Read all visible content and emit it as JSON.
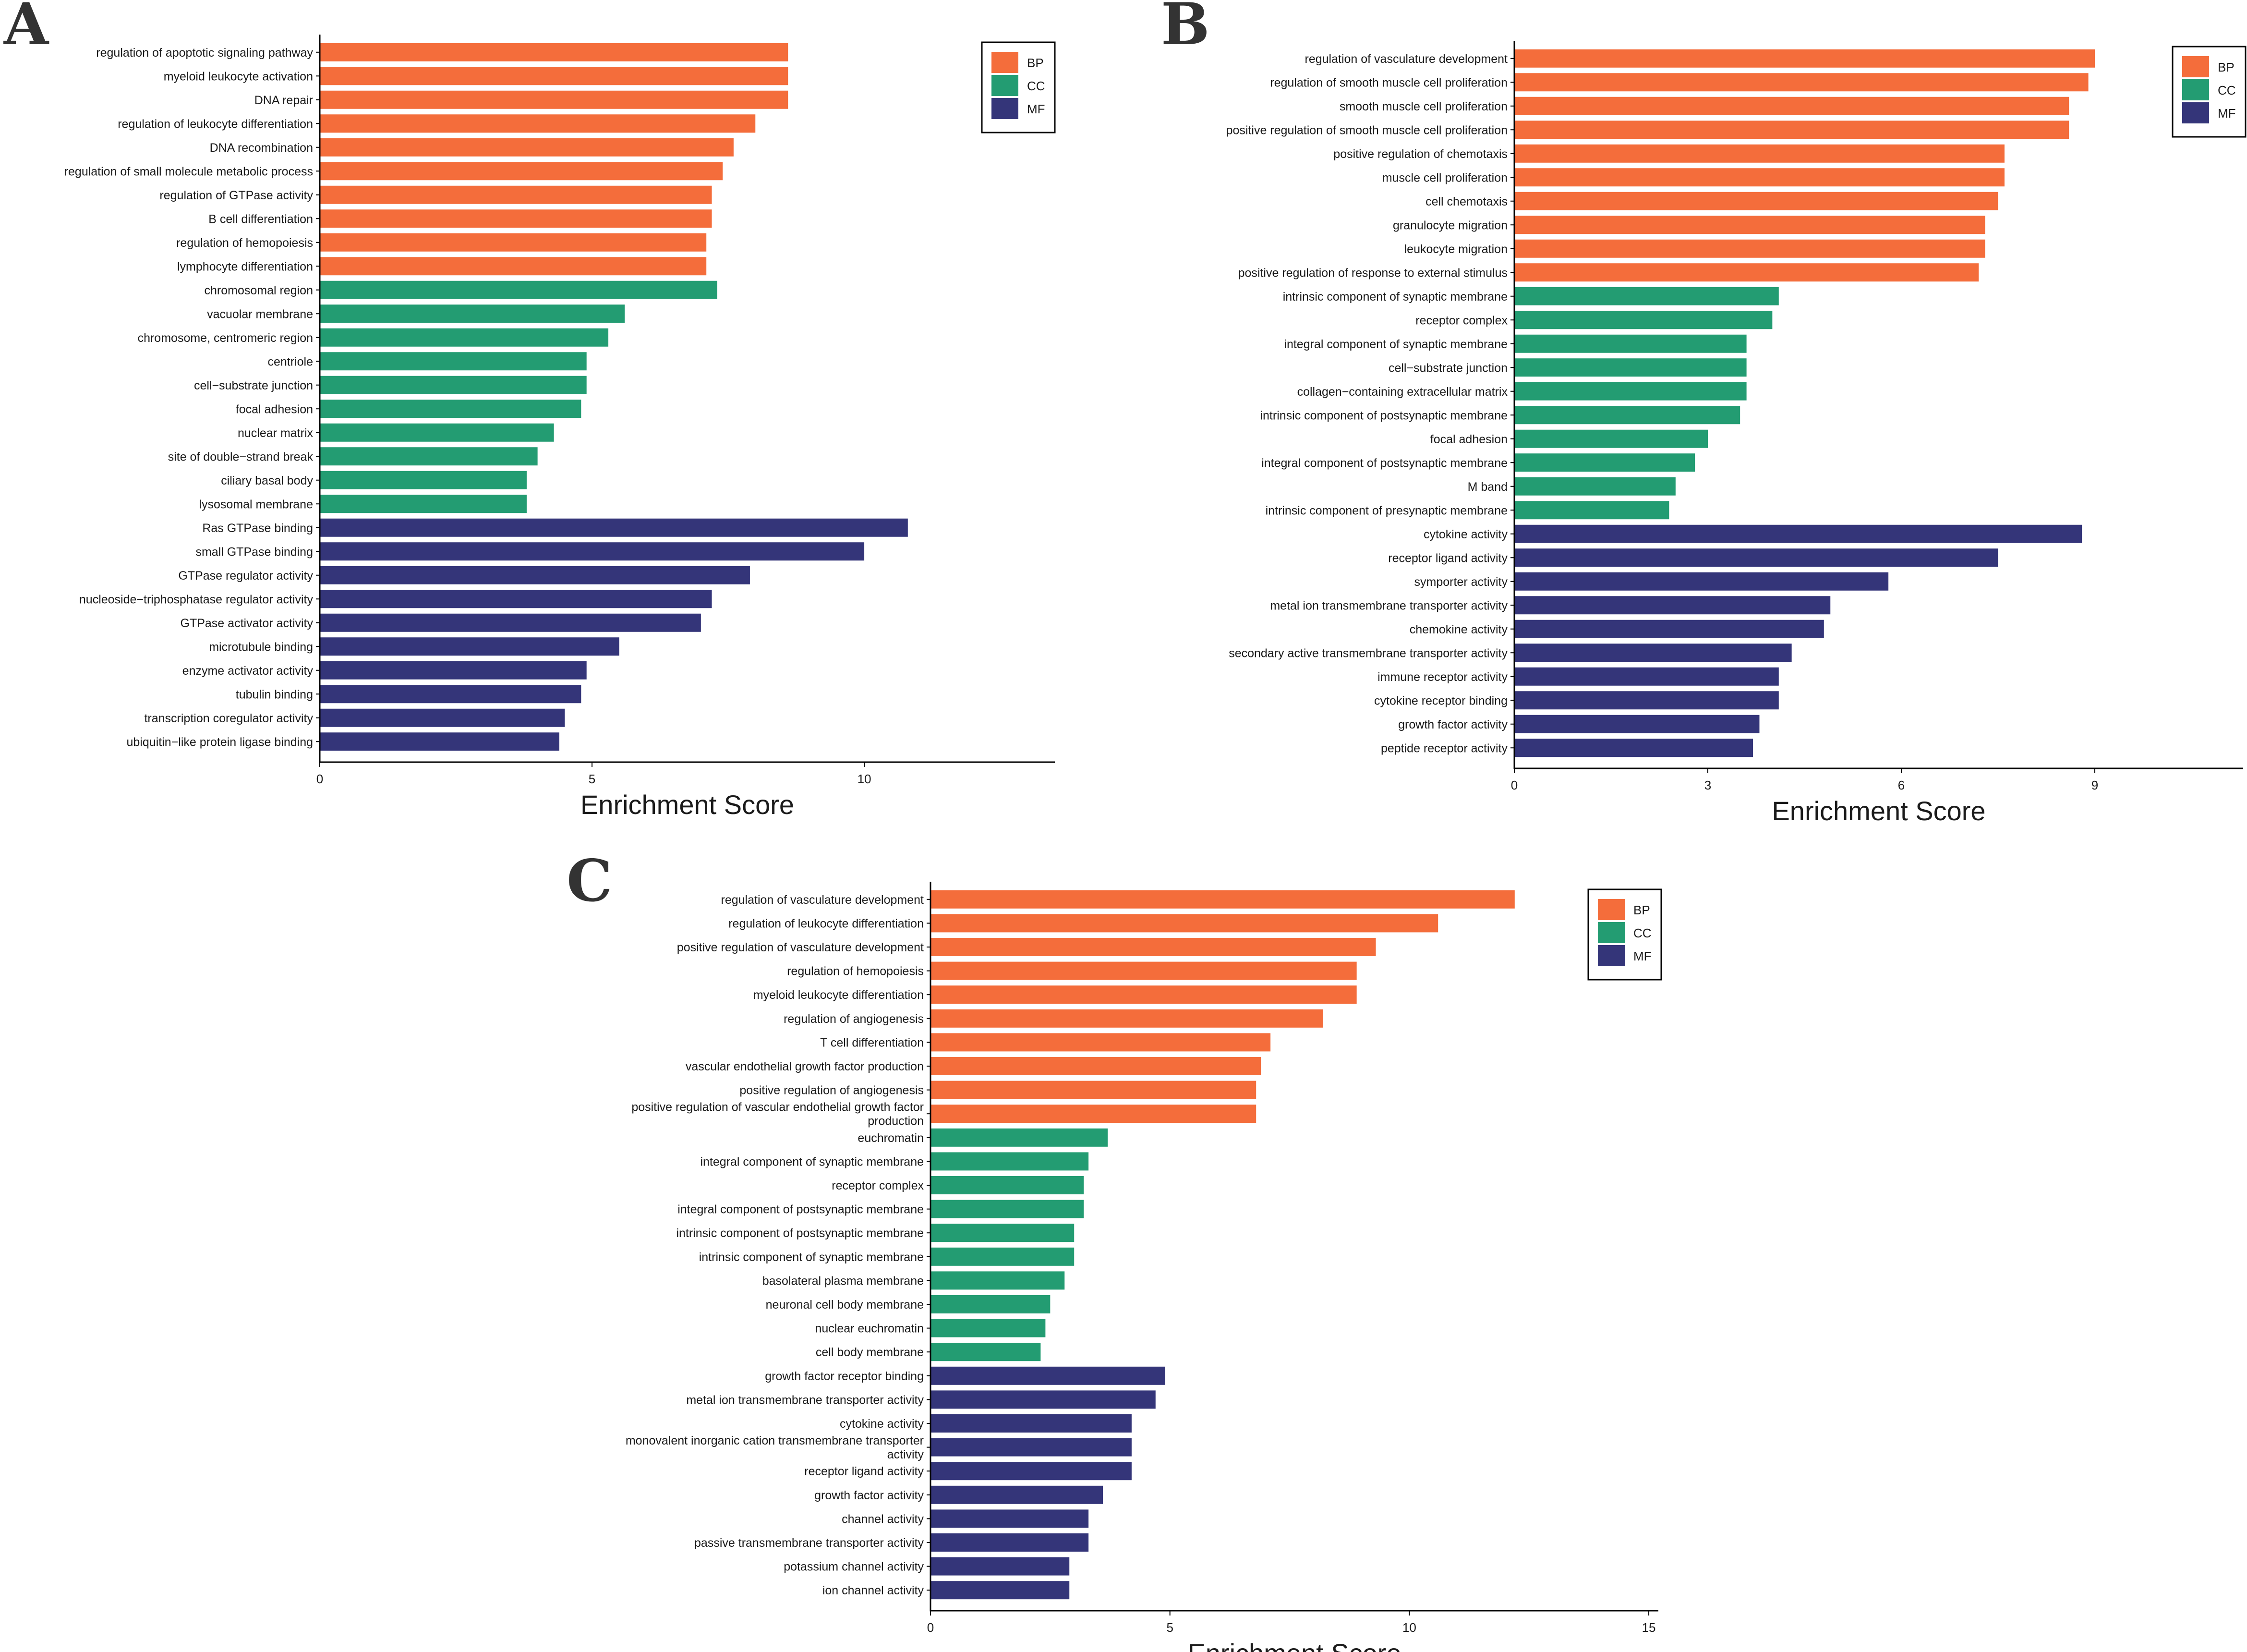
{
  "colors": {
    "BP": "#F46D3B",
    "CC": "#239C72",
    "MF": "#343579"
  },
  "chart_data": [
    {
      "panel": "A",
      "type": "bar",
      "orientation": "horizontal",
      "xlabel": "Enrichment Score",
      "xlim": [
        0,
        13.5
      ],
      "xticks": [
        0,
        5,
        10
      ],
      "legend": {
        "position": "top-right",
        "entries": [
          "BP",
          "CC",
          "MF"
        ]
      },
      "bars": [
        {
          "label": "regulation of apoptotic signaling pathway",
          "value": 8.6,
          "group": "BP"
        },
        {
          "label": "myeloid leukocyte activation",
          "value": 8.6,
          "group": "BP"
        },
        {
          "label": "DNA repair",
          "value": 8.6,
          "group": "BP"
        },
        {
          "label": "regulation of leukocyte differentiation",
          "value": 8.0,
          "group": "BP"
        },
        {
          "label": "DNA recombination",
          "value": 7.6,
          "group": "BP"
        },
        {
          "label": "regulation of small molecule metabolic process",
          "value": 7.4,
          "group": "BP"
        },
        {
          "label": "regulation of GTPase activity",
          "value": 7.2,
          "group": "BP"
        },
        {
          "label": "B cell differentiation",
          "value": 7.2,
          "group": "BP"
        },
        {
          "label": "regulation of hemopoiesis",
          "value": 7.1,
          "group": "BP"
        },
        {
          "label": "lymphocyte differentiation",
          "value": 7.1,
          "group": "BP"
        },
        {
          "label": "chromosomal region",
          "value": 7.3,
          "group": "CC"
        },
        {
          "label": "vacuolar membrane",
          "value": 5.6,
          "group": "CC"
        },
        {
          "label": "chromosome, centromeric region",
          "value": 5.3,
          "group": "CC"
        },
        {
          "label": "centriole",
          "value": 4.9,
          "group": "CC"
        },
        {
          "label": "cell−substrate junction",
          "value": 4.9,
          "group": "CC"
        },
        {
          "label": "focal adhesion",
          "value": 4.8,
          "group": "CC"
        },
        {
          "label": "nuclear matrix",
          "value": 4.3,
          "group": "CC"
        },
        {
          "label": "site of double−strand break",
          "value": 4.0,
          "group": "CC"
        },
        {
          "label": "ciliary basal body",
          "value": 3.8,
          "group": "CC"
        },
        {
          "label": "lysosomal membrane",
          "value": 3.8,
          "group": "CC"
        },
        {
          "label": "Ras GTPase binding",
          "value": 10.8,
          "group": "MF"
        },
        {
          "label": "small GTPase binding",
          "value": 10.0,
          "group": "MF"
        },
        {
          "label": "GTPase regulator activity",
          "value": 7.9,
          "group": "MF"
        },
        {
          "label": "nucleoside−triphosphatase regulator activity",
          "value": 7.2,
          "group": "MF"
        },
        {
          "label": "GTPase activator activity",
          "value": 7.0,
          "group": "MF"
        },
        {
          "label": "microtubule binding",
          "value": 5.5,
          "group": "MF"
        },
        {
          "label": "enzyme activator activity",
          "value": 4.9,
          "group": "MF"
        },
        {
          "label": "tubulin binding",
          "value": 4.8,
          "group": "MF"
        },
        {
          "label": "transcription coregulator activity",
          "value": 4.5,
          "group": "MF"
        },
        {
          "label": "ubiquitin−like protein ligase binding",
          "value": 4.4,
          "group": "MF"
        }
      ]
    },
    {
      "panel": "B",
      "type": "bar",
      "orientation": "horizontal",
      "xlabel": "Enrichment Score",
      "xlim": [
        0,
        11.3
      ],
      "xticks": [
        0,
        3,
        6,
        9
      ],
      "legend": {
        "position": "top-right",
        "entries": [
          "BP",
          "CC",
          "MF"
        ]
      },
      "bars": [
        {
          "label": "regulation of vasculature development",
          "value": 9.0,
          "group": "BP"
        },
        {
          "label": "regulation of smooth muscle cell proliferation",
          "value": 8.9,
          "group": "BP"
        },
        {
          "label": "smooth muscle cell proliferation",
          "value": 8.6,
          "group": "BP"
        },
        {
          "label": "positive regulation of smooth muscle cell proliferation",
          "value": 8.6,
          "group": "BP"
        },
        {
          "label": "positive regulation of chemotaxis",
          "value": 7.6,
          "group": "BP"
        },
        {
          "label": "muscle cell proliferation",
          "value": 7.6,
          "group": "BP"
        },
        {
          "label": "cell chemotaxis",
          "value": 7.5,
          "group": "BP"
        },
        {
          "label": "granulocyte migration",
          "value": 7.3,
          "group": "BP"
        },
        {
          "label": "leukocyte migration",
          "value": 7.3,
          "group": "BP"
        },
        {
          "label": "positive regulation of response to external stimulus",
          "value": 7.2,
          "group": "BP"
        },
        {
          "label": "intrinsic component of synaptic membrane",
          "value": 4.1,
          "group": "CC"
        },
        {
          "label": "receptor complex",
          "value": 4.0,
          "group": "CC"
        },
        {
          "label": "integral component of synaptic membrane",
          "value": 3.6,
          "group": "CC"
        },
        {
          "label": "cell−substrate junction",
          "value": 3.6,
          "group": "CC"
        },
        {
          "label": "collagen−containing extracellular matrix",
          "value": 3.6,
          "group": "CC"
        },
        {
          "label": "intrinsic component of postsynaptic membrane",
          "value": 3.5,
          "group": "CC"
        },
        {
          "label": "focal adhesion",
          "value": 3.0,
          "group": "CC"
        },
        {
          "label": "integral component of postsynaptic membrane",
          "value": 2.8,
          "group": "CC"
        },
        {
          "label": "M band",
          "value": 2.5,
          "group": "CC"
        },
        {
          "label": "intrinsic component of presynaptic membrane",
          "value": 2.4,
          "group": "CC"
        },
        {
          "label": "cytokine activity",
          "value": 8.8,
          "group": "MF"
        },
        {
          "label": "receptor ligand activity",
          "value": 7.5,
          "group": "MF"
        },
        {
          "label": "symporter activity",
          "value": 5.8,
          "group": "MF"
        },
        {
          "label": "metal ion transmembrane transporter activity",
          "value": 4.9,
          "group": "MF"
        },
        {
          "label": "chemokine activity",
          "value": 4.8,
          "group": "MF"
        },
        {
          "label": "secondary active transmembrane transporter activity",
          "value": 4.3,
          "group": "MF"
        },
        {
          "label": "immune receptor activity",
          "value": 4.1,
          "group": "MF"
        },
        {
          "label": "cytokine receptor binding",
          "value": 4.1,
          "group": "MF"
        },
        {
          "label": "growth factor activity",
          "value": 3.8,
          "group": "MF"
        },
        {
          "label": "peptide receptor activity",
          "value": 3.7,
          "group": "MF"
        }
      ]
    },
    {
      "panel": "C",
      "type": "bar",
      "orientation": "horizontal",
      "xlabel": "Enrichment Score",
      "xlim": [
        0,
        15.2
      ],
      "xticks": [
        0,
        5,
        10,
        15
      ],
      "legend": {
        "position": "top-right",
        "entries": [
          "BP",
          "CC",
          "MF"
        ]
      },
      "bars": [
        {
          "label": "regulation of vasculature development",
          "value": 12.2,
          "group": "BP"
        },
        {
          "label": "regulation of leukocyte differentiation",
          "value": 10.6,
          "group": "BP"
        },
        {
          "label": "positive regulation of vasculature development",
          "value": 9.3,
          "group": "BP"
        },
        {
          "label": "regulation of hemopoiesis",
          "value": 8.9,
          "group": "BP"
        },
        {
          "label": "myeloid leukocyte differentiation",
          "value": 8.9,
          "group": "BP"
        },
        {
          "label": "regulation of angiogenesis",
          "value": 8.2,
          "group": "BP"
        },
        {
          "label": "T cell differentiation",
          "value": 7.1,
          "group": "BP"
        },
        {
          "label": "vascular endothelial growth factor production",
          "value": 6.9,
          "group": "BP"
        },
        {
          "label": "positive regulation of angiogenesis",
          "value": 6.8,
          "group": "BP"
        },
        {
          "label": "positive regulation of vascular endothelial growth factor production",
          "label_lines": [
            "positive regulation of vascular endothelial growth factor",
            "production"
          ],
          "value": 6.8,
          "group": "BP"
        },
        {
          "label": "euchromatin",
          "value": 3.7,
          "group": "CC"
        },
        {
          "label": "integral component of synaptic membrane",
          "value": 3.3,
          "group": "CC"
        },
        {
          "label": "receptor complex",
          "value": 3.2,
          "group": "CC"
        },
        {
          "label": "integral component of postsynaptic membrane",
          "value": 3.2,
          "group": "CC"
        },
        {
          "label": "intrinsic component of postsynaptic membrane",
          "value": 3.0,
          "group": "CC"
        },
        {
          "label": "intrinsic component of synaptic membrane",
          "value": 3.0,
          "group": "CC"
        },
        {
          "label": "basolateral plasma membrane",
          "value": 2.8,
          "group": "CC"
        },
        {
          "label": "neuronal cell body membrane",
          "value": 2.5,
          "group": "CC"
        },
        {
          "label": "nuclear euchromatin",
          "value": 2.4,
          "group": "CC"
        },
        {
          "label": "cell body membrane",
          "value": 2.3,
          "group": "CC"
        },
        {
          "label": "growth factor receptor binding",
          "value": 4.9,
          "group": "MF"
        },
        {
          "label": "metal ion transmembrane transporter activity",
          "value": 4.7,
          "group": "MF"
        },
        {
          "label": "cytokine activity",
          "value": 4.2,
          "group": "MF"
        },
        {
          "label": "monovalent inorganic cation transmembrane transporter activity",
          "label_lines": [
            "monovalent inorganic cation transmembrane transporter",
            "activity"
          ],
          "value": 4.2,
          "group": "MF"
        },
        {
          "label": "receptor ligand activity",
          "value": 4.2,
          "group": "MF"
        },
        {
          "label": "growth factor activity",
          "value": 3.6,
          "group": "MF"
        },
        {
          "label": "channel activity",
          "value": 3.3,
          "group": "MF"
        },
        {
          "label": "passive transmembrane transporter activity",
          "value": 3.3,
          "group": "MF"
        },
        {
          "label": "potassium channel activity",
          "value": 2.9,
          "group": "MF"
        },
        {
          "label": "ion channel activity",
          "value": 2.9,
          "group": "MF"
        }
      ]
    }
  ]
}
